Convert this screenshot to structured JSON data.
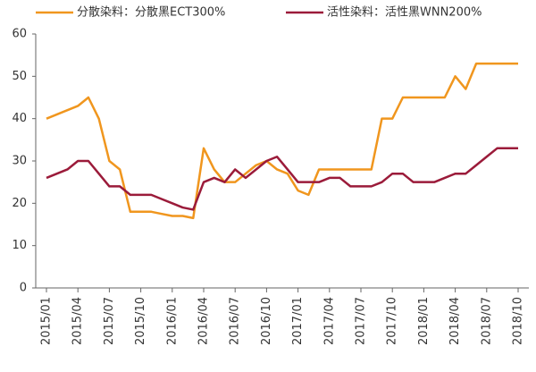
{
  "chart_data": {
    "type": "line",
    "categories": [
      "2015/01",
      null,
      null,
      "2015/04",
      null,
      null,
      "2015/07",
      null,
      null,
      "2015/10",
      null,
      null,
      "2016/01",
      null,
      null,
      "2016/04",
      null,
      null,
      "2016/07",
      null,
      null,
      "2016/10",
      null,
      null,
      "2017/01",
      null,
      null,
      "2017/04",
      null,
      null,
      "2017/07",
      null,
      null,
      "2017/10",
      null,
      null,
      "2018/01",
      null,
      null,
      "2018/04",
      null,
      null,
      "2018/07",
      null,
      null,
      "2018/10"
    ],
    "series": [
      {
        "name": "分散染料：分散黑ECT300%",
        "color": "#f0961e",
        "values": [
          40,
          41,
          42,
          43,
          45,
          40,
          30,
          28,
          18,
          18,
          18,
          17.5,
          17,
          17,
          16.5,
          33,
          28,
          25,
          25,
          27,
          29,
          30,
          28,
          27,
          23,
          22,
          28,
          28,
          28,
          28,
          28,
          28,
          40,
          40,
          45,
          45,
          45,
          45,
          45,
          50,
          47,
          53,
          53,
          53,
          53,
          53
        ]
      },
      {
        "name": "活性染料：活性黑WNN200%",
        "color": "#9b1b3a",
        "values": [
          26,
          27,
          28,
          30,
          30,
          27,
          24,
          24,
          22,
          22,
          22,
          21,
          20,
          19,
          18.5,
          25,
          26,
          25,
          28,
          26,
          28,
          30,
          31,
          28,
          25,
          25,
          25,
          26,
          26,
          24,
          24,
          24,
          25,
          27,
          27,
          25,
          25,
          25,
          26,
          27,
          27,
          29,
          31,
          33,
          33,
          33
        ]
      }
    ],
    "ylim": [
      0,
      60
    ],
    "yticks": [
      0,
      10,
      20,
      30,
      40,
      50,
      60
    ],
    "grid": false,
    "legend": "top"
  }
}
